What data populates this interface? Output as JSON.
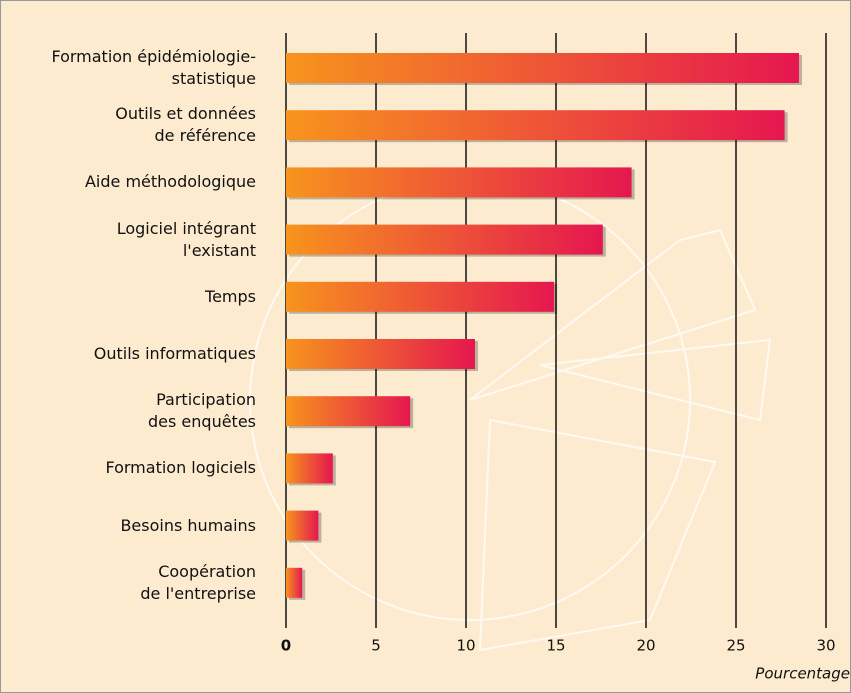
{
  "chart_data": {
    "type": "barh",
    "categories": [
      "Formation épidémiologie-\nstatistique",
      "Outils et données\nde référence",
      "Aide méthodologique",
      "Logiciel intégrant\nl'existant",
      "Temps",
      "Outils informatiques",
      "Participation\ndes enquêtes",
      "Formation logiciels",
      "Besoins humains",
      "Coopération\nde l'entreprise"
    ],
    "values": [
      28.5,
      27.7,
      19.2,
      17.6,
      14.9,
      10.5,
      6.9,
      2.6,
      1.8,
      0.9
    ],
    "colors": [
      "#f7941d",
      "#e5174f"
    ],
    "xlim": [
      0,
      30
    ],
    "xticks": [
      0,
      5,
      10,
      15,
      20,
      25,
      30
    ],
    "xlabel": "Pourcentage",
    "grid": true
  }
}
